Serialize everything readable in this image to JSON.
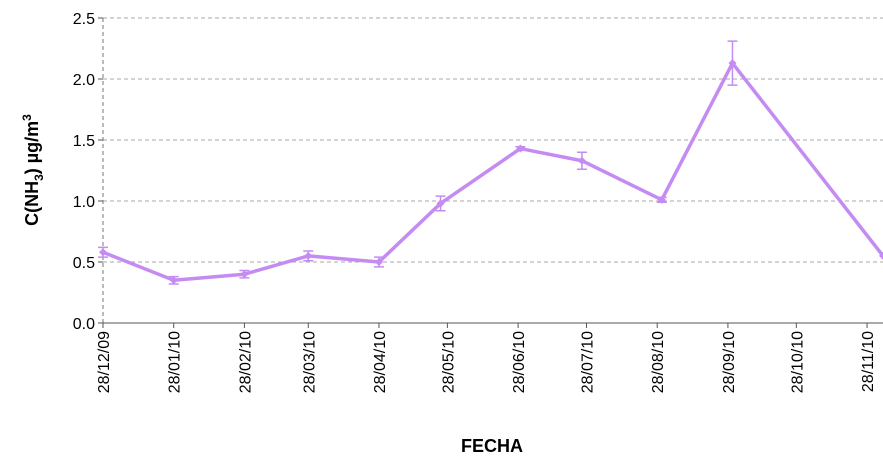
{
  "chart_data": {
    "type": "line",
    "x_label": "FECHA",
    "y_label": [
      "C(NH",
      "3",
      ") µg/m",
      "3"
    ],
    "x": [
      "28/12/09",
      "28/01/10",
      "28/02/10",
      "28/03/10",
      "28/04/10",
      "25/05/10",
      "29/06/10",
      "26/07/10",
      "30/08/10",
      "30/09/10",
      "05/12/10"
    ],
    "series": [
      {
        "color": "#c48cf2",
        "values": [
          0.58,
          0.35,
          0.4,
          0.55,
          0.5,
          0.98,
          1.43,
          1.33,
          1.01,
          2.13,
          0.55
        ],
        "errors": [
          0.04,
          0.03,
          0.03,
          0.04,
          0.04,
          0.06,
          0.015,
          0.07,
          0.02,
          0.18,
          0.0
        ]
      }
    ],
    "xlim": [
      "28/12/09",
      "05/12/10"
    ],
    "xticks": [
      "28/12/09",
      "28/01/10",
      "28/02/10",
      "28/03/10",
      "28/04/10",
      "28/05/10",
      "28/06/10",
      "28/07/10",
      "28/08/10",
      "28/09/10",
      "28/10/10",
      "28/11/10"
    ],
    "ylim": [
      0,
      2.5
    ],
    "yticks": [
      {
        "value": 0,
        "label": "0.0"
      },
      {
        "value": 0.5,
        "label": "0.5"
      },
      {
        "value": 1,
        "label": "1.0"
      },
      {
        "value": 1.5,
        "label": "1.5"
      },
      {
        "value": 2,
        "label": "2.0"
      },
      {
        "value": 2.5,
        "label": "2.5"
      }
    ],
    "grid": true
  }
}
